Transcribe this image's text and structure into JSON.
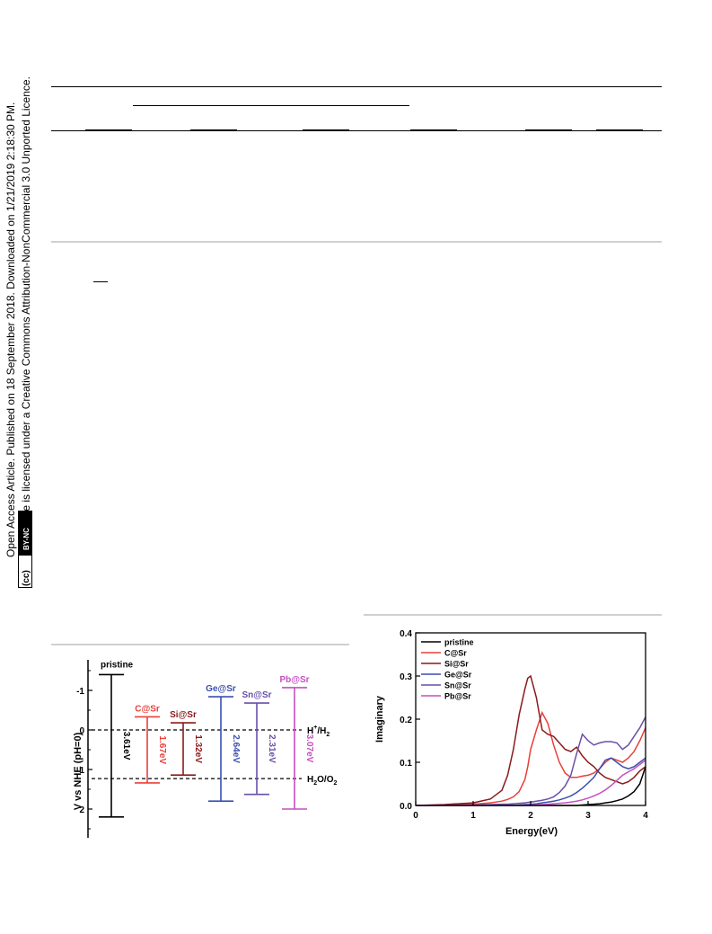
{
  "sidebar": {
    "line1": "Open Access Article. Published on 18 September 2018. Downloaded on 1/21/2019 2:18:30 PM.",
    "line2": "This article is licensed under a Creative Commons Attribution-NonCommercial 3.0 Unported Licence.",
    "badge_cc": "(cc)",
    "badge_by_nc": "BY-NC"
  },
  "figure_left": {
    "ylabel": "V vs NHE (pH=0)",
    "yticks": [
      "-1",
      "0",
      "1",
      "2"
    ],
    "levels": [
      {
        "name": "pristine",
        "gap_label": "3.61eV",
        "color": "#000000",
        "top": -1.4,
        "bottom": 2.2
      },
      {
        "name": "C@Sr",
        "gap_label": "1.67eV",
        "color": "#e8403a",
        "top": -0.33,
        "bottom": 1.34
      },
      {
        "name": "Si@Sr",
        "gap_label": "1.32eV",
        "color": "#8b1a1a",
        "top": -0.18,
        "bottom": 1.14
      },
      {
        "name": "Ge@Sr",
        "gap_label": "2.64eV",
        "color": "#3a4fb0",
        "top": -0.84,
        "bottom": 1.8
      },
      {
        "name": "Sn@Sr",
        "gap_label": "2.31eV",
        "color": "#6a4fa8",
        "top": -0.68,
        "bottom": 1.63
      },
      {
        "name": "Pb@Sr",
        "gap_label": "3.07eV",
        "color": "#c64fc0",
        "top": -1.07,
        "bottom": 2.0
      }
    ],
    "ref_lines": [
      {
        "value": 0.0,
        "label_main": "H",
        "label_sup": "+",
        "label_tail": "/H",
        "label_sub": "2"
      },
      {
        "value": 1.23,
        "label_main": "H",
        "label_sub1": "2",
        "label_mid": "O/O",
        "label_sub": "2"
      }
    ]
  },
  "chart_data": {
    "type": "line",
    "xlabel": "Energy(eV)",
    "ylabel": "Imaginary",
    "xlim": [
      0,
      4
    ],
    "ylim": [
      0,
      0.4
    ],
    "xticks": [
      "0",
      "1",
      "2",
      "3",
      "4"
    ],
    "yticks": [
      "0.0",
      "0.1",
      "0.2",
      "0.3",
      "0.4"
    ],
    "legend_position": "top-left",
    "x": [
      0,
      0.5,
      1.0,
      1.3,
      1.5,
      1.6,
      1.7,
      1.8,
      1.9,
      1.95,
      2.0,
      2.1,
      2.2,
      2.3,
      2.4,
      2.5,
      2.6,
      2.7,
      2.8,
      2.9,
      3.0,
      3.1,
      3.2,
      3.3,
      3.4,
      3.5,
      3.6,
      3.7,
      3.8,
      3.9,
      4.0
    ],
    "series": [
      {
        "name": "pristine",
        "color": "#000000",
        "values": [
          0,
          0,
          0,
          0,
          0,
          0,
          0,
          0,
          0,
          0,
          0,
          0,
          0,
          0,
          0,
          0,
          0,
          0,
          0,
          0.001,
          0.002,
          0.003,
          0.004,
          0.006,
          0.008,
          0.011,
          0.015,
          0.022,
          0.032,
          0.05,
          0.09
        ]
      },
      {
        "name": "C@Sr",
        "color": "#e8403a",
        "values": [
          0,
          0.001,
          0.003,
          0.006,
          0.01,
          0.014,
          0.02,
          0.032,
          0.06,
          0.09,
          0.13,
          0.175,
          0.215,
          0.19,
          0.14,
          0.1,
          0.075,
          0.065,
          0.065,
          0.068,
          0.07,
          0.075,
          0.085,
          0.1,
          0.11,
          0.105,
          0.1,
          0.11,
          0.125,
          0.15,
          0.18
        ]
      },
      {
        "name": "Si@Sr",
        "color": "#8b1a1a",
        "values": [
          0,
          0.002,
          0.006,
          0.015,
          0.035,
          0.07,
          0.13,
          0.21,
          0.27,
          0.295,
          0.3,
          0.25,
          0.175,
          0.165,
          0.16,
          0.145,
          0.13,
          0.125,
          0.135,
          0.115,
          0.1,
          0.09,
          0.075,
          0.065,
          0.06,
          0.055,
          0.05,
          0.055,
          0.065,
          0.08,
          0.09
        ]
      },
      {
        "name": "Ge@Sr",
        "color": "#3a4fb0",
        "values": [
          0,
          0,
          0,
          0,
          0,
          0,
          0,
          0.001,
          0.002,
          0.002,
          0.003,
          0.004,
          0.006,
          0.008,
          0.01,
          0.013,
          0.017,
          0.022,
          0.03,
          0.04,
          0.052,
          0.065,
          0.085,
          0.105,
          0.11,
          0.1,
          0.09,
          0.085,
          0.09,
          0.1,
          0.11
        ]
      },
      {
        "name": "Sn@Sr",
        "color": "#6a4fa8",
        "values": [
          0,
          0,
          0.001,
          0.002,
          0.003,
          0.003,
          0.004,
          0.005,
          0.006,
          0.007,
          0.008,
          0.01,
          0.012,
          0.015,
          0.02,
          0.03,
          0.045,
          0.07,
          0.12,
          0.165,
          0.15,
          0.14,
          0.145,
          0.148,
          0.148,
          0.145,
          0.13,
          0.14,
          0.16,
          0.18,
          0.205
        ]
      },
      {
        "name": "Pb@Sr",
        "color": "#c64fc0",
        "values": [
          0,
          0,
          0,
          0,
          0,
          0,
          0,
          0,
          0,
          0,
          0.001,
          0.001,
          0.002,
          0.003,
          0.004,
          0.005,
          0.006,
          0.008,
          0.01,
          0.013,
          0.017,
          0.022,
          0.028,
          0.036,
          0.046,
          0.058,
          0.07,
          0.078,
          0.085,
          0.095,
          0.105
        ]
      }
    ]
  }
}
